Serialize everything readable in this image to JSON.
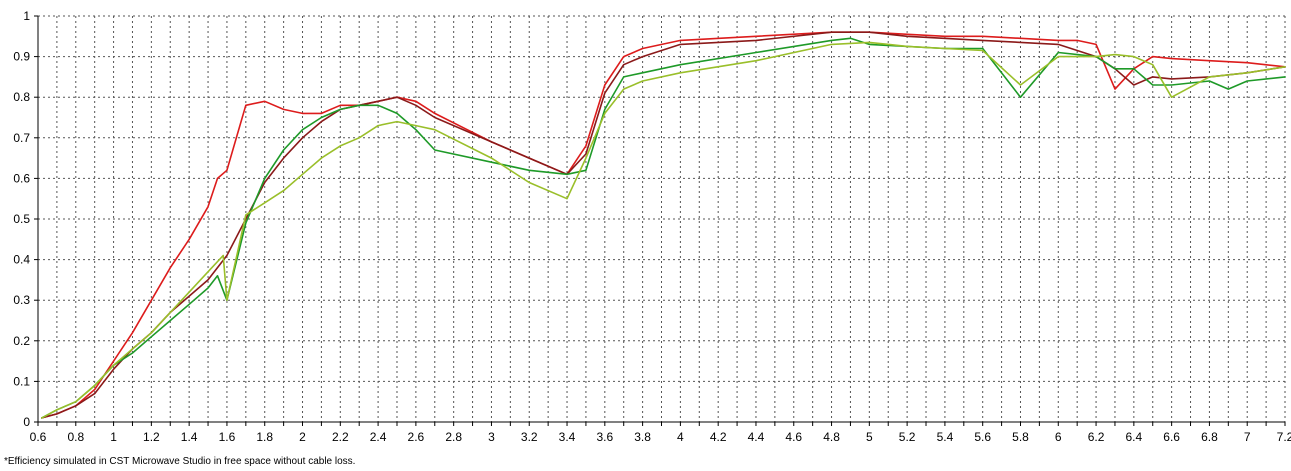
{
  "footnote": "*Efficiency simulated in CST Microwave Studio in free space without cable loss.",
  "chart_data": {
    "type": "line",
    "title": "",
    "xlabel": "",
    "ylabel": "",
    "xlim": [
      0.6,
      7.2
    ],
    "ylim": [
      0,
      1
    ],
    "grid": true,
    "legend": "none",
    "x_ticks": [
      "0.6",
      "0.8",
      "1",
      "1.2",
      "1.4",
      "1.6",
      "1.8",
      "2",
      "2.2",
      "2.4",
      "2.6",
      "2.8",
      "3",
      "3.2",
      "3.4",
      "3.6",
      "3.8",
      "4",
      "4.2",
      "4.4",
      "4.6",
      "4.8",
      "5",
      "5.2",
      "5.4",
      "5.6",
      "5.8",
      "6",
      "6.2",
      "6.4",
      "6.6",
      "6.8",
      "7",
      "7.2"
    ],
    "y_ticks": [
      "0",
      "0.1",
      "0.2",
      "0.3",
      "0.4",
      "0.5",
      "0.6",
      "0.7",
      "0.8",
      "0.9",
      "1"
    ],
    "series": [
      {
        "color": "#dd1c1c",
        "points": [
          [
            0.62,
            0.01
          ],
          [
            0.7,
            0.02
          ],
          [
            0.8,
            0.04
          ],
          [
            0.9,
            0.08
          ],
          [
            1.0,
            0.15
          ],
          [
            1.1,
            0.22
          ],
          [
            1.2,
            0.3
          ],
          [
            1.3,
            0.38
          ],
          [
            1.4,
            0.45
          ],
          [
            1.5,
            0.53
          ],
          [
            1.55,
            0.6
          ],
          [
            1.6,
            0.62
          ],
          [
            1.7,
            0.78
          ],
          [
            1.8,
            0.79
          ],
          [
            1.9,
            0.77
          ],
          [
            2.0,
            0.76
          ],
          [
            2.1,
            0.76
          ],
          [
            2.2,
            0.78
          ],
          [
            2.3,
            0.78
          ],
          [
            2.4,
            0.79
          ],
          [
            2.5,
            0.8
          ],
          [
            2.6,
            0.79
          ],
          [
            2.7,
            0.76
          ],
          [
            3.0,
            0.69
          ],
          [
            3.2,
            0.65
          ],
          [
            3.4,
            0.61
          ],
          [
            3.5,
            0.68
          ],
          [
            3.6,
            0.83
          ],
          [
            3.7,
            0.9
          ],
          [
            3.8,
            0.92
          ],
          [
            4.0,
            0.94
          ],
          [
            4.4,
            0.95
          ],
          [
            4.8,
            0.96
          ],
          [
            5.0,
            0.96
          ],
          [
            5.4,
            0.95
          ],
          [
            5.6,
            0.95
          ],
          [
            6.0,
            0.94
          ],
          [
            6.1,
            0.94
          ],
          [
            6.2,
            0.93
          ],
          [
            6.3,
            0.82
          ],
          [
            6.4,
            0.87
          ],
          [
            6.5,
            0.9
          ],
          [
            6.6,
            0.895
          ],
          [
            6.8,
            0.89
          ],
          [
            7.0,
            0.885
          ],
          [
            7.2,
            0.875
          ]
        ]
      },
      {
        "color": "#8b1a1a",
        "points": [
          [
            0.62,
            0.01
          ],
          [
            0.7,
            0.02
          ],
          [
            0.8,
            0.04
          ],
          [
            0.9,
            0.07
          ],
          [
            1.0,
            0.13
          ],
          [
            1.1,
            0.18
          ],
          [
            1.2,
            0.22
          ],
          [
            1.3,
            0.27
          ],
          [
            1.4,
            0.31
          ],
          [
            1.5,
            0.35
          ],
          [
            1.6,
            0.41
          ],
          [
            1.7,
            0.5
          ],
          [
            1.8,
            0.59
          ],
          [
            1.9,
            0.65
          ],
          [
            2.0,
            0.7
          ],
          [
            2.1,
            0.74
          ],
          [
            2.2,
            0.77
          ],
          [
            2.3,
            0.78
          ],
          [
            2.4,
            0.79
          ],
          [
            2.5,
            0.8
          ],
          [
            2.6,
            0.78
          ],
          [
            2.7,
            0.75
          ],
          [
            3.0,
            0.69
          ],
          [
            3.2,
            0.65
          ],
          [
            3.4,
            0.61
          ],
          [
            3.5,
            0.66
          ],
          [
            3.6,
            0.81
          ],
          [
            3.7,
            0.88
          ],
          [
            3.8,
            0.9
          ],
          [
            4.0,
            0.93
          ],
          [
            4.4,
            0.94
          ],
          [
            4.8,
            0.96
          ],
          [
            5.0,
            0.96
          ],
          [
            5.2,
            0.95
          ],
          [
            5.6,
            0.94
          ],
          [
            6.0,
            0.93
          ],
          [
            6.2,
            0.9
          ],
          [
            6.3,
            0.87
          ],
          [
            6.4,
            0.83
          ],
          [
            6.5,
            0.85
          ],
          [
            6.6,
            0.845
          ],
          [
            6.8,
            0.85
          ],
          [
            7.0,
            0.86
          ],
          [
            7.2,
            0.875
          ]
        ]
      },
      {
        "color": "#1e9a28",
        "points": [
          [
            0.62,
            0.01
          ],
          [
            0.7,
            0.03
          ],
          [
            0.8,
            0.05
          ],
          [
            0.9,
            0.09
          ],
          [
            1.0,
            0.14
          ],
          [
            1.1,
            0.17
          ],
          [
            1.2,
            0.21
          ],
          [
            1.3,
            0.25
          ],
          [
            1.4,
            0.29
          ],
          [
            1.5,
            0.33
          ],
          [
            1.55,
            0.36
          ],
          [
            1.6,
            0.3
          ],
          [
            1.7,
            0.49
          ],
          [
            1.8,
            0.6
          ],
          [
            1.9,
            0.67
          ],
          [
            2.0,
            0.72
          ],
          [
            2.1,
            0.75
          ],
          [
            2.2,
            0.77
          ],
          [
            2.3,
            0.78
          ],
          [
            2.4,
            0.78
          ],
          [
            2.5,
            0.76
          ],
          [
            2.6,
            0.72
          ],
          [
            2.7,
            0.67
          ],
          [
            3.0,
            0.64
          ],
          [
            3.2,
            0.62
          ],
          [
            3.4,
            0.61
          ],
          [
            3.5,
            0.62
          ],
          [
            3.6,
            0.77
          ],
          [
            3.7,
            0.85
          ],
          [
            3.8,
            0.86
          ],
          [
            4.0,
            0.88
          ],
          [
            4.4,
            0.91
          ],
          [
            4.8,
            0.94
          ],
          [
            4.9,
            0.945
          ],
          [
            5.0,
            0.93
          ],
          [
            5.4,
            0.92
          ],
          [
            5.6,
            0.92
          ],
          [
            5.8,
            0.8
          ],
          [
            6.0,
            0.91
          ],
          [
            6.2,
            0.9
          ],
          [
            6.3,
            0.87
          ],
          [
            6.4,
            0.87
          ],
          [
            6.5,
            0.83
          ],
          [
            6.6,
            0.83
          ],
          [
            6.8,
            0.84
          ],
          [
            6.9,
            0.82
          ],
          [
            7.0,
            0.84
          ],
          [
            7.2,
            0.85
          ]
        ]
      },
      {
        "color": "#9abf2a",
        "points": [
          [
            0.62,
            0.01
          ],
          [
            0.7,
            0.03
          ],
          [
            0.8,
            0.05
          ],
          [
            0.9,
            0.09
          ],
          [
            1.0,
            0.14
          ],
          [
            1.1,
            0.18
          ],
          [
            1.2,
            0.22
          ],
          [
            1.3,
            0.27
          ],
          [
            1.4,
            0.32
          ],
          [
            1.5,
            0.37
          ],
          [
            1.58,
            0.41
          ],
          [
            1.6,
            0.3
          ],
          [
            1.7,
            0.51
          ],
          [
            1.8,
            0.54
          ],
          [
            1.9,
            0.57
          ],
          [
            2.0,
            0.61
          ],
          [
            2.1,
            0.65
          ],
          [
            2.2,
            0.68
          ],
          [
            2.3,
            0.7
          ],
          [
            2.4,
            0.73
          ],
          [
            2.5,
            0.74
          ],
          [
            2.6,
            0.73
          ],
          [
            2.7,
            0.72
          ],
          [
            3.0,
            0.65
          ],
          [
            3.2,
            0.59
          ],
          [
            3.4,
            0.55
          ],
          [
            3.5,
            0.65
          ],
          [
            3.6,
            0.76
          ],
          [
            3.7,
            0.82
          ],
          [
            3.8,
            0.84
          ],
          [
            4.0,
            0.86
          ],
          [
            4.4,
            0.89
          ],
          [
            4.8,
            0.93
          ],
          [
            5.0,
            0.935
          ],
          [
            5.2,
            0.925
          ],
          [
            5.6,
            0.915
          ],
          [
            5.8,
            0.83
          ],
          [
            6.0,
            0.9
          ],
          [
            6.2,
            0.9
          ],
          [
            6.3,
            0.905
          ],
          [
            6.4,
            0.9
          ],
          [
            6.5,
            0.88
          ],
          [
            6.6,
            0.8
          ],
          [
            6.8,
            0.85
          ],
          [
            7.0,
            0.86
          ],
          [
            7.2,
            0.875
          ]
        ]
      }
    ]
  }
}
